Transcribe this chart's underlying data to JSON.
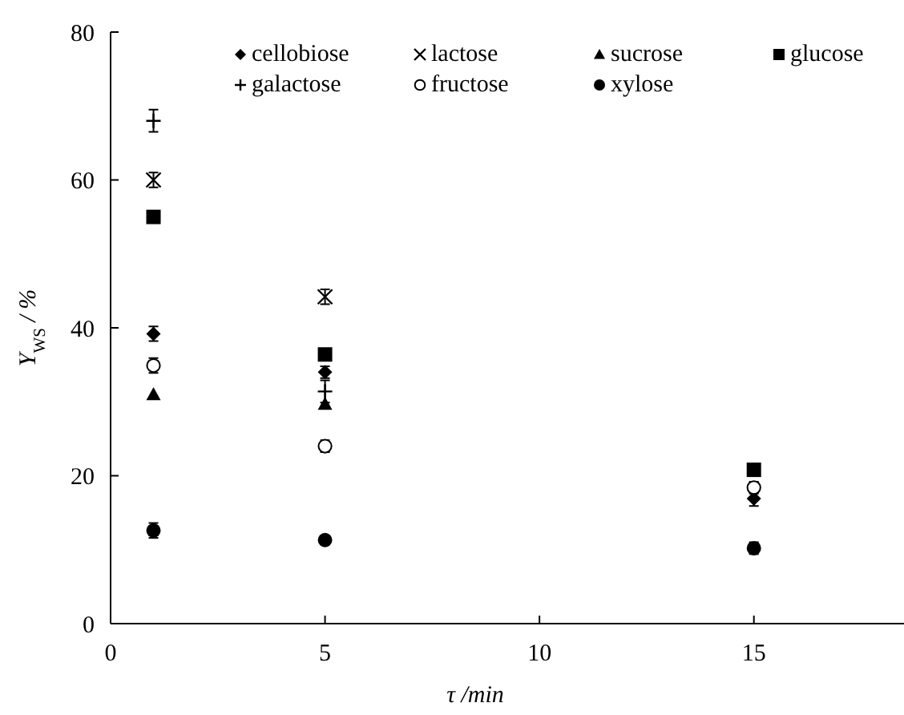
{
  "chart_data": {
    "type": "scatter",
    "xlabel": "τ /min",
    "ylabel": "Y$_{WS}$ / %",
    "x": [
      1,
      5,
      15
    ],
    "xlim": [
      0,
      18.5
    ],
    "xticks": [
      0,
      5,
      10,
      15
    ],
    "ylim": [
      0,
      80
    ],
    "yticks": [
      0,
      20,
      40,
      60,
      80
    ],
    "grid": false,
    "legend": "top",
    "series": [
      {
        "name": "cellobiose",
        "color": "#000000",
        "marker": "diamond",
        "values": [
          39.2,
          34.0,
          16.9
        ],
        "errors": [
          1,
          0.8,
          1
        ]
      },
      {
        "name": "lactose",
        "color": "#000000",
        "marker": "cross",
        "values": [
          60,
          44.2,
          null
        ],
        "errors": [
          1,
          1,
          null
        ]
      },
      {
        "name": "sucrose",
        "color": "#000000",
        "marker": "triangle",
        "values": [
          31.0,
          29.7,
          null
        ]
      },
      {
        "name": "glucose",
        "color": "#000000",
        "marker": "square",
        "values": [
          55.0,
          36.4,
          20.8
        ]
      },
      {
        "name": "galactose",
        "color": "#000000",
        "marker": "plus",
        "values": [
          68.0,
          31.4,
          null
        ],
        "errors": [
          1.5,
          1.5,
          null
        ]
      },
      {
        "name": "fructose",
        "color": "#000000",
        "marker": "open-circle",
        "values": [
          34.9,
          24.0,
          18.4
        ],
        "errors": [
          1,
          0.8,
          0.8
        ]
      },
      {
        "name": "xylose",
        "color": "#000000",
        "marker": "circle",
        "values": [
          12.6,
          11.3,
          10.2
        ],
        "errors": [
          1,
          0.6,
          0.8
        ]
      }
    ]
  }
}
